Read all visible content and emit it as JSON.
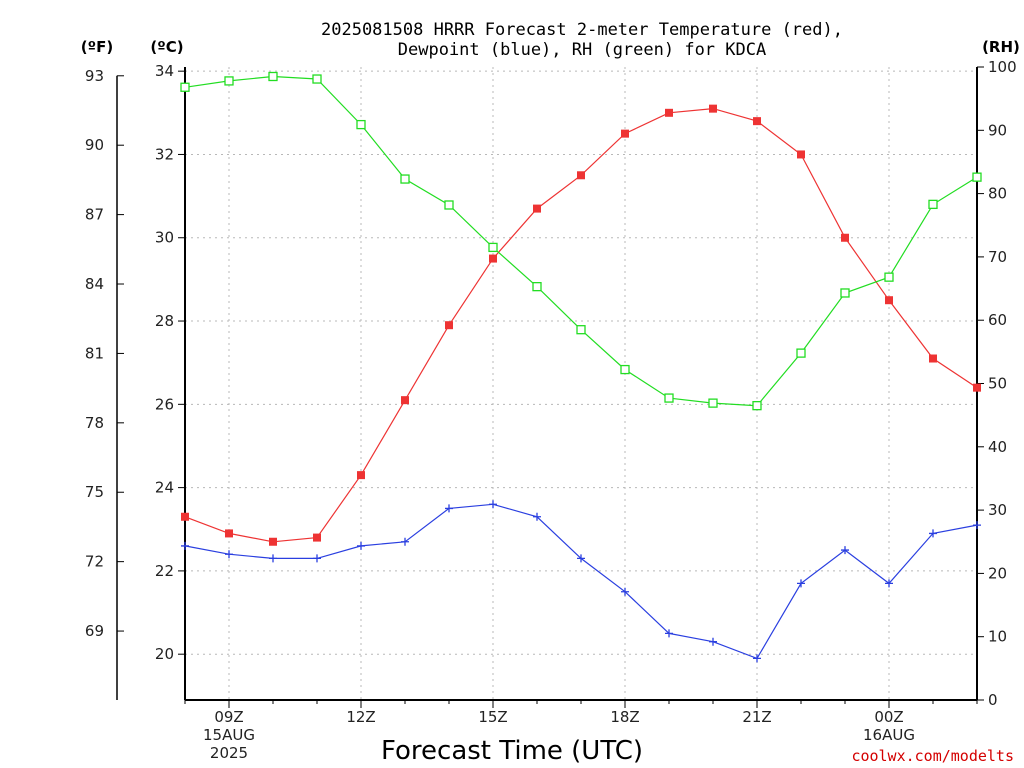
{
  "chart_data": {
    "type": "line",
    "title": [
      "2025081508 HRRR Forecast 2-meter Temperature (red),",
      "Dewpoint (blue), RH (green) for KDCA"
    ],
    "xlabel": "Forecast Time (UTC)",
    "credit": "coolwx.com/modelts",
    "units": {
      "fahrenheit": "(ºF)",
      "celsius": "(ºC)",
      "rh": "(RH)"
    },
    "x_hours": [
      8,
      9,
      10,
      11,
      12,
      13,
      14,
      15,
      16,
      17,
      18,
      19,
      20,
      21,
      22,
      23,
      24,
      25,
      26
    ],
    "x_range": [
      8,
      26
    ],
    "x_ticks": [
      {
        "hour": 9,
        "lines": [
          "09Z",
          "15AUG",
          "2025"
        ]
      },
      {
        "hour": 12,
        "lines": [
          "12Z"
        ]
      },
      {
        "hour": 15,
        "lines": [
          "15Z"
        ]
      },
      {
        "hour": 18,
        "lines": [
          "18Z"
        ]
      },
      {
        "hour": 21,
        "lines": [
          "21Z"
        ]
      },
      {
        "hour": 24,
        "lines": [
          "00Z",
          "16AUG"
        ]
      }
    ],
    "y_left_celsius": {
      "range": [
        18.9,
        34.1
      ],
      "ticks": [
        20,
        22,
        24,
        26,
        28,
        30,
        32,
        34
      ]
    },
    "y_left_fahrenheit": {
      "ticks": [
        69,
        72,
        75,
        78,
        81,
        84,
        87,
        90,
        93
      ]
    },
    "y_right_rh": {
      "range": [
        0,
        100
      ],
      "ticks": [
        0,
        10,
        20,
        30,
        40,
        50,
        60,
        70,
        80,
        90,
        100
      ]
    },
    "grid": true,
    "series": [
      {
        "name": "Temperature",
        "axis": "celsius",
        "color": "#ee3333",
        "marker": "filled-square",
        "values": [
          23.3,
          22.9,
          22.7,
          22.8,
          24.3,
          26.1,
          27.9,
          29.5,
          30.7,
          31.5,
          32.5,
          33.0,
          33.1,
          32.8,
          32.0,
          30.0,
          28.5,
          27.1,
          26.4
        ]
      },
      {
        "name": "Dewpoint",
        "axis": "celsius",
        "color": "#2a3fe0",
        "marker": "plus",
        "values": [
          22.6,
          22.4,
          22.3,
          22.3,
          22.6,
          22.7,
          23.5,
          23.6,
          23.3,
          22.3,
          21.5,
          20.5,
          20.3,
          19.9,
          21.7,
          22.5,
          21.7,
          22.9,
          23.1
        ]
      },
      {
        "name": "RH",
        "axis": "rh",
        "color": "#22dd22",
        "marker": "open-square",
        "values": [
          96.8,
          97.8,
          98.5,
          98.1,
          90.9,
          82.3,
          78.2,
          71.5,
          65.3,
          58.5,
          52.2,
          47.7,
          46.9,
          46.5,
          54.8,
          64.3,
          66.8,
          78.3,
          82.6
        ]
      }
    ]
  }
}
